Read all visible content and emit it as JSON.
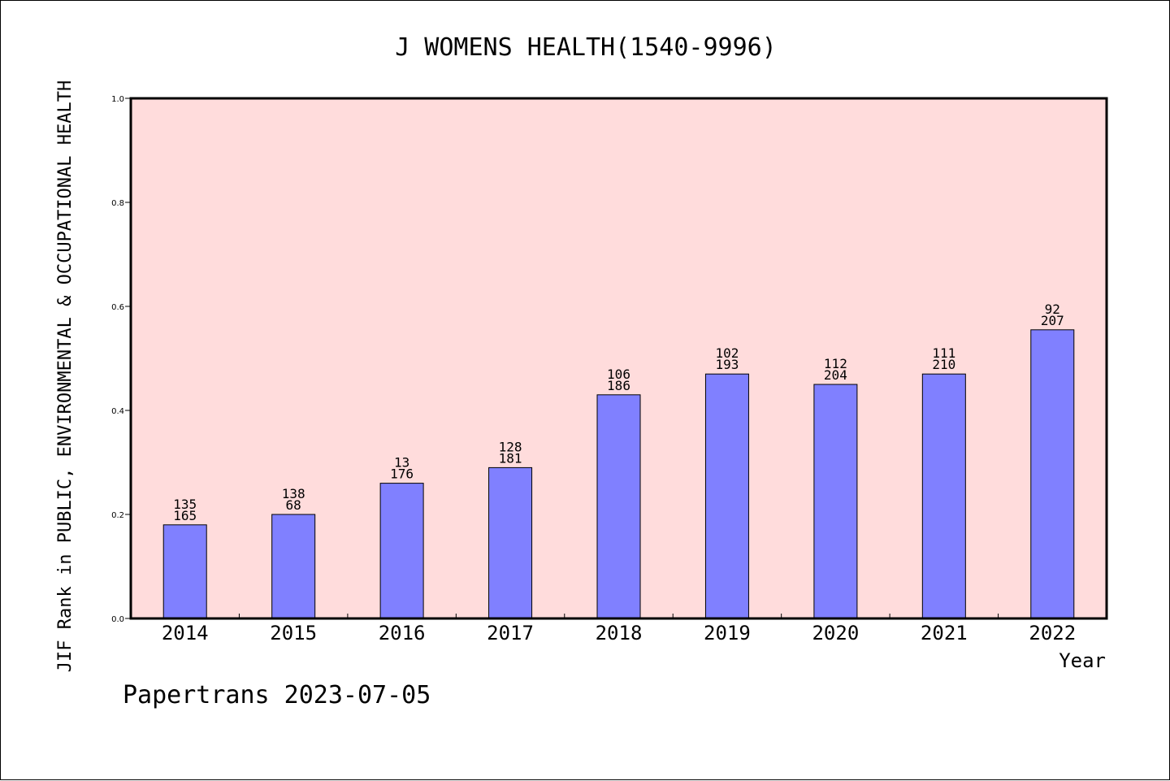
{
  "chart_data": {
    "type": "bar",
    "title": "J WOMENS HEALTH(1540-9996)",
    "xlabel": "Year",
    "ylabel": "JIF Rank in PUBLIC, ENVIRONMENTAL & OCCUPATIONAL HEALTH",
    "ylim": [
      0.0,
      1.0
    ],
    "yticks": [
      "0.0",
      "0.2",
      "0.4",
      "0.6",
      "0.8",
      "1.0"
    ],
    "categories": [
      "2014",
      "2015",
      "2016",
      "2017",
      "2018",
      "2019",
      "2020",
      "2021",
      "2022"
    ],
    "values": [
      0.18,
      0.2,
      0.26,
      0.29,
      0.43,
      0.47,
      0.45,
      0.47,
      0.555
    ],
    "labels_top": [
      "135",
      "138",
      "13",
      "128",
      "106",
      "102",
      "112",
      "111",
      "92"
    ],
    "labels_bottom": [
      "165",
      "68",
      "176",
      "181",
      "186",
      "193",
      "204",
      "210",
      "207"
    ],
    "grid": false,
    "colors": {
      "bar": "#8080ff",
      "plot_background": "#ffdcdc"
    }
  },
  "footer": {
    "credit": "Papertrans 2023-07-05"
  }
}
